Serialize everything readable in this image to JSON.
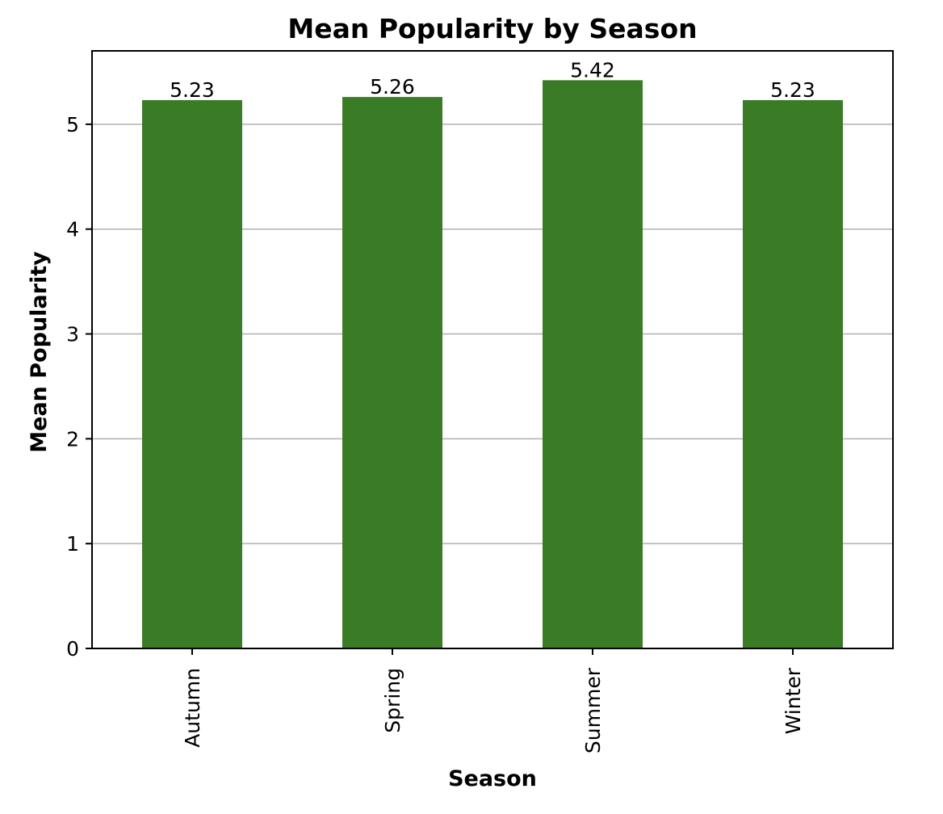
{
  "chart_data": {
    "type": "bar",
    "title": "Mean Popularity by Season",
    "xlabel": "Season",
    "ylabel": "Mean Popularity",
    "categories": [
      "Autumn",
      "Spring",
      "Summer",
      "Winter"
    ],
    "values": [
      5.23,
      5.26,
      5.42,
      5.23
    ],
    "value_labels": [
      "5.23",
      "5.26",
      "5.42",
      "5.23"
    ],
    "ylim": [
      0,
      5.7
    ],
    "yticks": [
      0,
      1,
      2,
      3,
      4,
      5
    ],
    "grid": "horizontal",
    "bar_color": "#3a7b25",
    "grid_color": "#b0b0b0"
  }
}
